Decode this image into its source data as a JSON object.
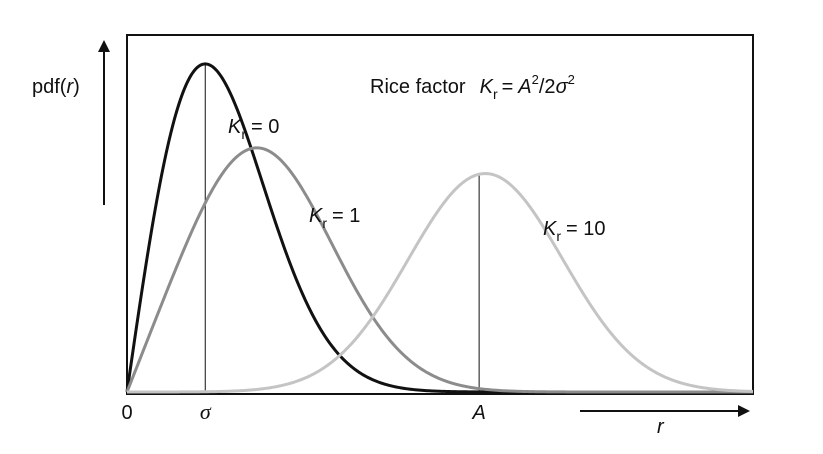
{
  "chart_data": {
    "type": "line",
    "title": "Rice factor",
    "title_formula": {
      "lhs_var": "K",
      "lhs_sub": "r",
      "eq": "=",
      "num": "A",
      "num_exp": "2",
      "slash": "/2",
      "den": "σ",
      "den_exp": "2"
    },
    "ylabel": {
      "pre": "pdf(",
      "var": "r",
      "post": ")"
    },
    "xlabel": "r",
    "x_ticks": [
      {
        "label": "0",
        "x": 0,
        "style": "plain"
      },
      {
        "label": "σ",
        "x": 1,
        "style": "serif-italic"
      },
      {
        "label": "A",
        "x": 4.5,
        "style": "italic"
      }
    ],
    "xlim": [
      0,
      8
    ],
    "ylim": [
      0,
      0.66
    ],
    "grid": false,
    "legend": "inline",
    "sigma": 1,
    "A": 4.5,
    "series": [
      {
        "name": "K_r = 0",
        "var": "K",
        "sub": "r",
        "eq": "= 0",
        "K": 0,
        "color": "#111111",
        "marker_x": 1
      },
      {
        "name": "K_r = 1",
        "var": "K",
        "sub": "r",
        "eq": "= 1",
        "K": 1,
        "color": "#8c8c8c",
        "marker_x": null
      },
      {
        "name": "K_r = 10",
        "var": "K",
        "sub": "r",
        "eq": "= 10",
        "K": 10,
        "color": "#c4c4c4",
        "marker_x": 4.5
      }
    ]
  }
}
